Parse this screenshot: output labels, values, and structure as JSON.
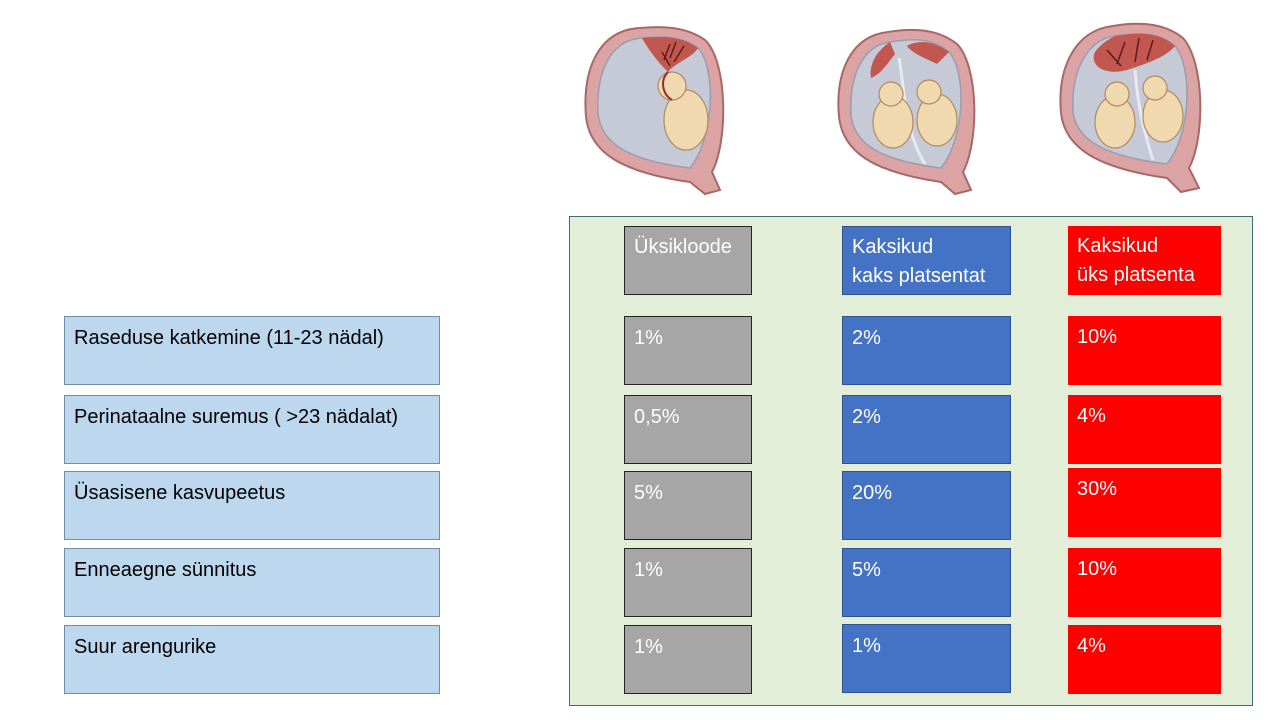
{
  "illustrations": [
    {
      "name": "singleton-uterus-illustration"
    },
    {
      "name": "twins-two-placentas-illustration"
    },
    {
      "name": "twins-one-placenta-illustration"
    }
  ],
  "columns": [
    {
      "line1": "Üksikloode",
      "line2": ""
    },
    {
      "line1": "Kaksikud",
      "line2": "kaks platsentat"
    },
    {
      "line1": "Kaksikud",
      "line2": "üks platsenta"
    }
  ],
  "rows": [
    {
      "label": "Raseduse katkemine (11-23 nädal)",
      "values": [
        "1%",
        "2%",
        "10%"
      ]
    },
    {
      "label": "Perinataalne suremus ( >23 nädalat)",
      "values": [
        "0,5%",
        "2%",
        "4%"
      ]
    },
    {
      "label": "Üsasisene kasvupeetus",
      "values": [
        "5%",
        "20%",
        "30%"
      ]
    },
    {
      "label": "Enneaegne sünnitus",
      "values": [
        "1%",
        "5%",
        "10%"
      ]
    },
    {
      "label": "Suur arengurike",
      "values": [
        "1%",
        "1%",
        "4%"
      ]
    }
  ],
  "colors": {
    "singleton": "#a6a6a6",
    "twins_two_placentas": "#4472c4",
    "twins_one_placenta": "#ff0000",
    "label_box": "#bdd7ee",
    "panel": "#e2eed8"
  }
}
